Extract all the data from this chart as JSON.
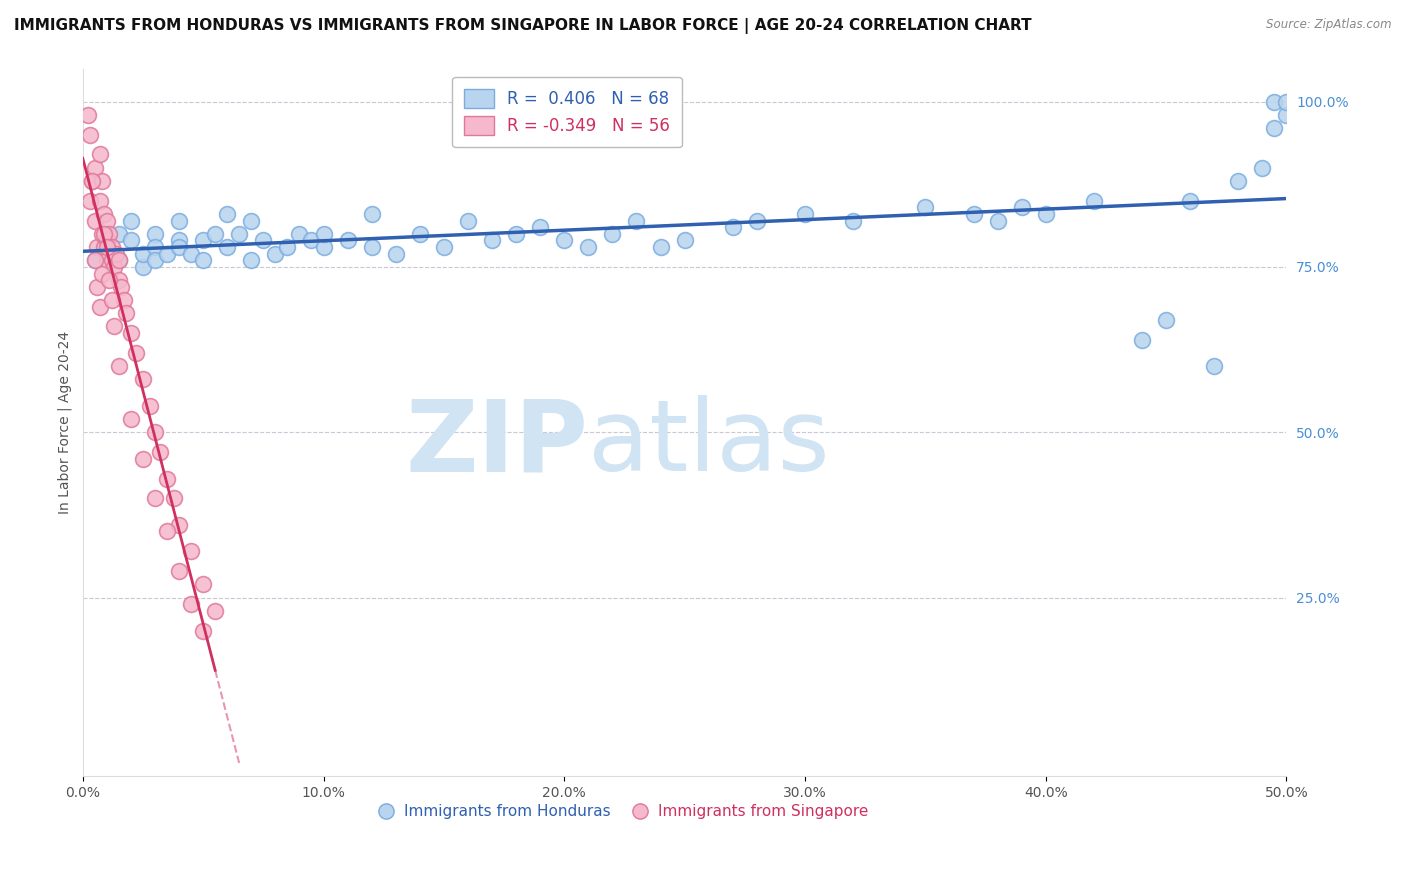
{
  "title": "IMMIGRANTS FROM HONDURAS VS IMMIGRANTS FROM SINGAPORE IN LABOR FORCE | AGE 20-24 CORRELATION CHART",
  "source": "Source: ZipAtlas.com",
  "R_blue": 0.406,
  "N_blue": 68,
  "R_pink": -0.349,
  "N_pink": 56,
  "legend_label_blue": "Immigrants from Honduras",
  "legend_label_pink": "Immigrants from Singapore",
  "blue_color": "#b8d4ee",
  "blue_edge": "#7aace0",
  "pink_color": "#f5b8cc",
  "pink_edge": "#e07898",
  "blue_line_color": "#3060b0",
  "pink_line_color": "#d03060",
  "blue_scatter_x": [
    0.005,
    0.01,
    0.01,
    0.015,
    0.015,
    0.02,
    0.02,
    0.025,
    0.025,
    0.03,
    0.03,
    0.03,
    0.035,
    0.04,
    0.04,
    0.04,
    0.045,
    0.05,
    0.05,
    0.055,
    0.06,
    0.06,
    0.065,
    0.07,
    0.07,
    0.075,
    0.08,
    0.085,
    0.09,
    0.095,
    0.1,
    0.1,
    0.11,
    0.12,
    0.12,
    0.13,
    0.14,
    0.15,
    0.16,
    0.17,
    0.18,
    0.19,
    0.2,
    0.21,
    0.22,
    0.23,
    0.24,
    0.25,
    0.27,
    0.28,
    0.3,
    0.32,
    0.35,
    0.37,
    0.38,
    0.39,
    0.4,
    0.42,
    0.44,
    0.45,
    0.46,
    0.47,
    0.48,
    0.49,
    0.495,
    0.5,
    0.495,
    0.5
  ],
  "blue_scatter_y": [
    0.76,
    0.77,
    0.78,
    0.8,
    0.76,
    0.79,
    0.82,
    0.75,
    0.77,
    0.8,
    0.78,
    0.76,
    0.77,
    0.79,
    0.82,
    0.78,
    0.77,
    0.76,
    0.79,
    0.8,
    0.78,
    0.83,
    0.8,
    0.76,
    0.82,
    0.79,
    0.77,
    0.78,
    0.8,
    0.79,
    0.78,
    0.8,
    0.79,
    0.83,
    0.78,
    0.77,
    0.8,
    0.78,
    0.82,
    0.79,
    0.8,
    0.81,
    0.79,
    0.78,
    0.8,
    0.82,
    0.78,
    0.79,
    0.81,
    0.82,
    0.83,
    0.82,
    0.84,
    0.83,
    0.82,
    0.84,
    0.83,
    0.85,
    0.64,
    0.67,
    0.85,
    0.6,
    0.88,
    0.9,
    0.96,
    0.98,
    1.0,
    1.0
  ],
  "pink_scatter_x": [
    0.002,
    0.003,
    0.004,
    0.005,
    0.005,
    0.006,
    0.007,
    0.007,
    0.008,
    0.008,
    0.009,
    0.009,
    0.01,
    0.01,
    0.01,
    0.011,
    0.012,
    0.012,
    0.013,
    0.014,
    0.015,
    0.015,
    0.016,
    0.017,
    0.018,
    0.02,
    0.022,
    0.025,
    0.028,
    0.03,
    0.032,
    0.035,
    0.038,
    0.04,
    0.045,
    0.05,
    0.055,
    0.003,
    0.004,
    0.005,
    0.006,
    0.007,
    0.008,
    0.009,
    0.01,
    0.011,
    0.012,
    0.013,
    0.015,
    0.02,
    0.025,
    0.03,
    0.035,
    0.04,
    0.045,
    0.05
  ],
  "pink_scatter_y": [
    0.98,
    0.85,
    0.88,
    0.9,
    0.82,
    0.78,
    0.92,
    0.85,
    0.8,
    0.88,
    0.78,
    0.83,
    0.79,
    0.82,
    0.76,
    0.8,
    0.78,
    0.76,
    0.75,
    0.77,
    0.73,
    0.76,
    0.72,
    0.7,
    0.68,
    0.65,
    0.62,
    0.58,
    0.54,
    0.5,
    0.47,
    0.43,
    0.4,
    0.36,
    0.32,
    0.27,
    0.23,
    0.95,
    0.88,
    0.76,
    0.72,
    0.69,
    0.74,
    0.8,
    0.78,
    0.73,
    0.7,
    0.66,
    0.6,
    0.52,
    0.46,
    0.4,
    0.35,
    0.29,
    0.24,
    0.2
  ],
  "xlim": [
    0.0,
    0.5
  ],
  "ylim": [
    -0.02,
    1.05
  ],
  "xticks": [
    0.0,
    0.1,
    0.2,
    0.3,
    0.4,
    0.5
  ],
  "xticklabels": [
    "0.0%",
    "10.0%",
    "20.0%",
    "30.0%",
    "40.0%",
    "50.0%"
  ],
  "yticks_right": [
    0.25,
    0.5,
    0.75,
    1.0
  ],
  "yticklabels_right": [
    "25.0%",
    "50.0%",
    "75.0%",
    "100.0%"
  ],
  "grid_color": "#c8c8d8",
  "bg_color": "#ffffff",
  "title_fontsize": 11,
  "axis_label_fontsize": 10,
  "tick_fontsize": 10,
  "watermark_zip": "ZIP",
  "watermark_atlas": "atlas",
  "watermark_color": "#d0e4f4"
}
